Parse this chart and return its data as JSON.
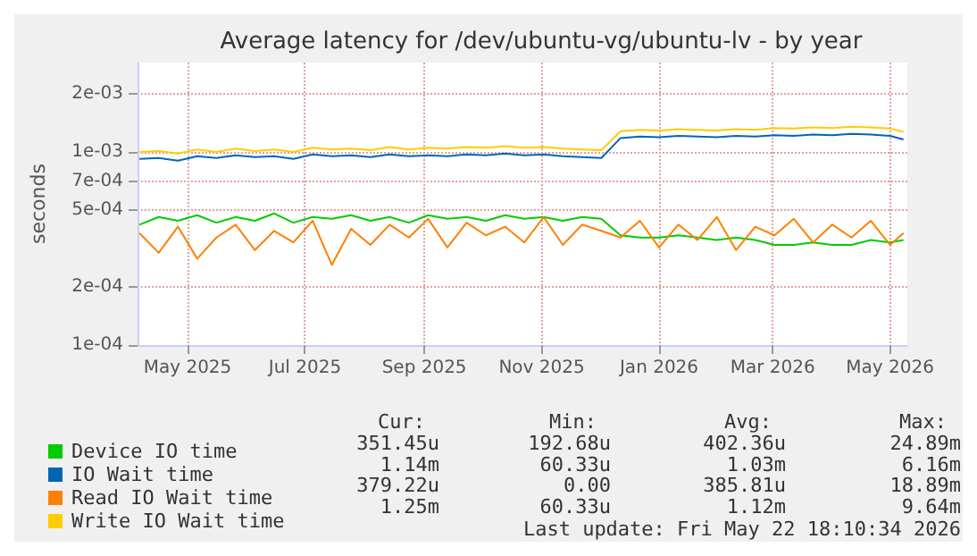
{
  "chart_data": {
    "type": "line",
    "title": "Average latency for /dev/ubuntu-vg/ubuntu-lv - by year",
    "ylabel": "seconds",
    "log": "y",
    "grid": true,
    "legend": "bottom left",
    "marker": "none",
    "line_style": "solid",
    "x": [
      "2025-04-06",
      "2025-04-16",
      "2025-04-26",
      "2025-05-06",
      "2025-05-16",
      "2025-05-26",
      "2025-06-05",
      "2025-06-15",
      "2025-06-25",
      "2025-07-05",
      "2025-07-15",
      "2025-07-25",
      "2025-08-04",
      "2025-08-14",
      "2025-08-24",
      "2025-09-03",
      "2025-09-13",
      "2025-09-23",
      "2025-10-03",
      "2025-10-13",
      "2025-10-23",
      "2025-11-02",
      "2025-11-12",
      "2025-11-22",
      "2025-12-02",
      "2025-12-12",
      "2025-12-22",
      "2026-01-01",
      "2026-01-11",
      "2026-01-21",
      "2026-01-31",
      "2026-02-10",
      "2026-02-20",
      "2026-03-02",
      "2026-03-12",
      "2026-03-22",
      "2026-04-01",
      "2026-04-11",
      "2026-04-21",
      "2026-05-01",
      "2026-05-08"
    ],
    "xlim": [
      "2025-04-05",
      "2026-05-10"
    ],
    "xticks": [
      {
        "value": "2025-05-01",
        "label": "May 2025"
      },
      {
        "value": "2025-07-01",
        "label": "Jul 2025"
      },
      {
        "value": "2025-09-01",
        "label": "Sep 2025"
      },
      {
        "value": "2025-11-01",
        "label": "Nov 2025"
      },
      {
        "value": "2026-01-01",
        "label": "Jan 2026"
      },
      {
        "value": "2026-03-01",
        "label": "Mar 2026"
      },
      {
        "value": "2026-05-01",
        "label": "May 2026"
      }
    ],
    "ylim": [
      0.0001,
      0.0029
    ],
    "yticks": [
      {
        "value": 0.0001,
        "label": "1e-04"
      },
      {
        "value": 0.0002,
        "label": "2e-04"
      },
      {
        "value": 0.0005,
        "label": "5e-04"
      },
      {
        "value": 0.0007,
        "label": "7e-04"
      },
      {
        "value": 0.001,
        "label": "1e-03"
      },
      {
        "value": 0.002,
        "label": "2e-03"
      }
    ],
    "series": [
      {
        "name": "Device IO time",
        "color": "#00cc00",
        "values": [
          0.00042,
          0.00046,
          0.00044,
          0.00047,
          0.00043,
          0.00046,
          0.00044,
          0.00048,
          0.00043,
          0.00046,
          0.00045,
          0.00047,
          0.00044,
          0.00046,
          0.00043,
          0.00047,
          0.00045,
          0.00046,
          0.00044,
          0.00047,
          0.00045,
          0.00046,
          0.00044,
          0.00046,
          0.00045,
          0.00037,
          0.00036,
          0.00036,
          0.00037,
          0.00036,
          0.00035,
          0.00036,
          0.00035,
          0.00033,
          0.00033,
          0.00034,
          0.00033,
          0.00033,
          0.00035,
          0.00034,
          0.00035
        ]
      },
      {
        "name": "IO Wait time",
        "color": "#0066b3",
        "values": [
          0.00092,
          0.00093,
          0.0009,
          0.00095,
          0.00093,
          0.00096,
          0.00094,
          0.00095,
          0.00092,
          0.00097,
          0.00095,
          0.00096,
          0.00094,
          0.00097,
          0.00095,
          0.00096,
          0.00095,
          0.00097,
          0.00096,
          0.00098,
          0.00096,
          0.00097,
          0.00095,
          0.00094,
          0.00093,
          0.00118,
          0.0012,
          0.00119,
          0.00121,
          0.0012,
          0.00119,
          0.00121,
          0.0012,
          0.00122,
          0.00121,
          0.00123,
          0.00122,
          0.00124,
          0.00123,
          0.00121,
          0.00116
        ]
      },
      {
        "name": "Read IO Wait time",
        "color": "#ff8000",
        "values": [
          0.00038,
          0.0003,
          0.00041,
          0.00028,
          0.00036,
          0.00042,
          0.00031,
          0.00039,
          0.00034,
          0.00044,
          0.00026,
          0.0004,
          0.00033,
          0.00042,
          0.00036,
          0.00045,
          0.00032,
          0.00043,
          0.00037,
          0.00041,
          0.00034,
          0.00046,
          0.00033,
          0.00042,
          0.00039,
          0.00036,
          0.00044,
          0.00032,
          0.00042,
          0.00035,
          0.00046,
          0.00031,
          0.00041,
          0.00037,
          0.00045,
          0.00034,
          0.00042,
          0.00036,
          0.00044,
          0.00033,
          0.00038
        ]
      },
      {
        "name": "Write IO Wait time",
        "color": "#ffcc00",
        "values": [
          0.001,
          0.00101,
          0.00098,
          0.00103,
          0.001,
          0.00104,
          0.00101,
          0.00103,
          0.001,
          0.00105,
          0.00103,
          0.00104,
          0.00102,
          0.00106,
          0.00103,
          0.00105,
          0.00104,
          0.00106,
          0.00105,
          0.00107,
          0.00105,
          0.00106,
          0.00104,
          0.00103,
          0.00102,
          0.00128,
          0.0013,
          0.00129,
          0.00131,
          0.0013,
          0.00129,
          0.00131,
          0.0013,
          0.00133,
          0.00132,
          0.00134,
          0.00133,
          0.00135,
          0.00134,
          0.00132,
          0.00127
        ]
      }
    ],
    "annotations": [
      "Cur:",
      "Min:",
      "Avg:",
      "Max:",
      "351.45u",
      "192.68u",
      "402.36u",
      "24.89m",
      "1.14m",
      "60.33u",
      "1.03m",
      "6.16m",
      "379.22u",
      "0.00",
      "385.81u",
      "18.89m",
      "1.25m",
      "60.33u",
      "1.12m",
      "9.64m",
      "Last update: Fri May 22 18:10:34 2026"
    ]
  }
}
